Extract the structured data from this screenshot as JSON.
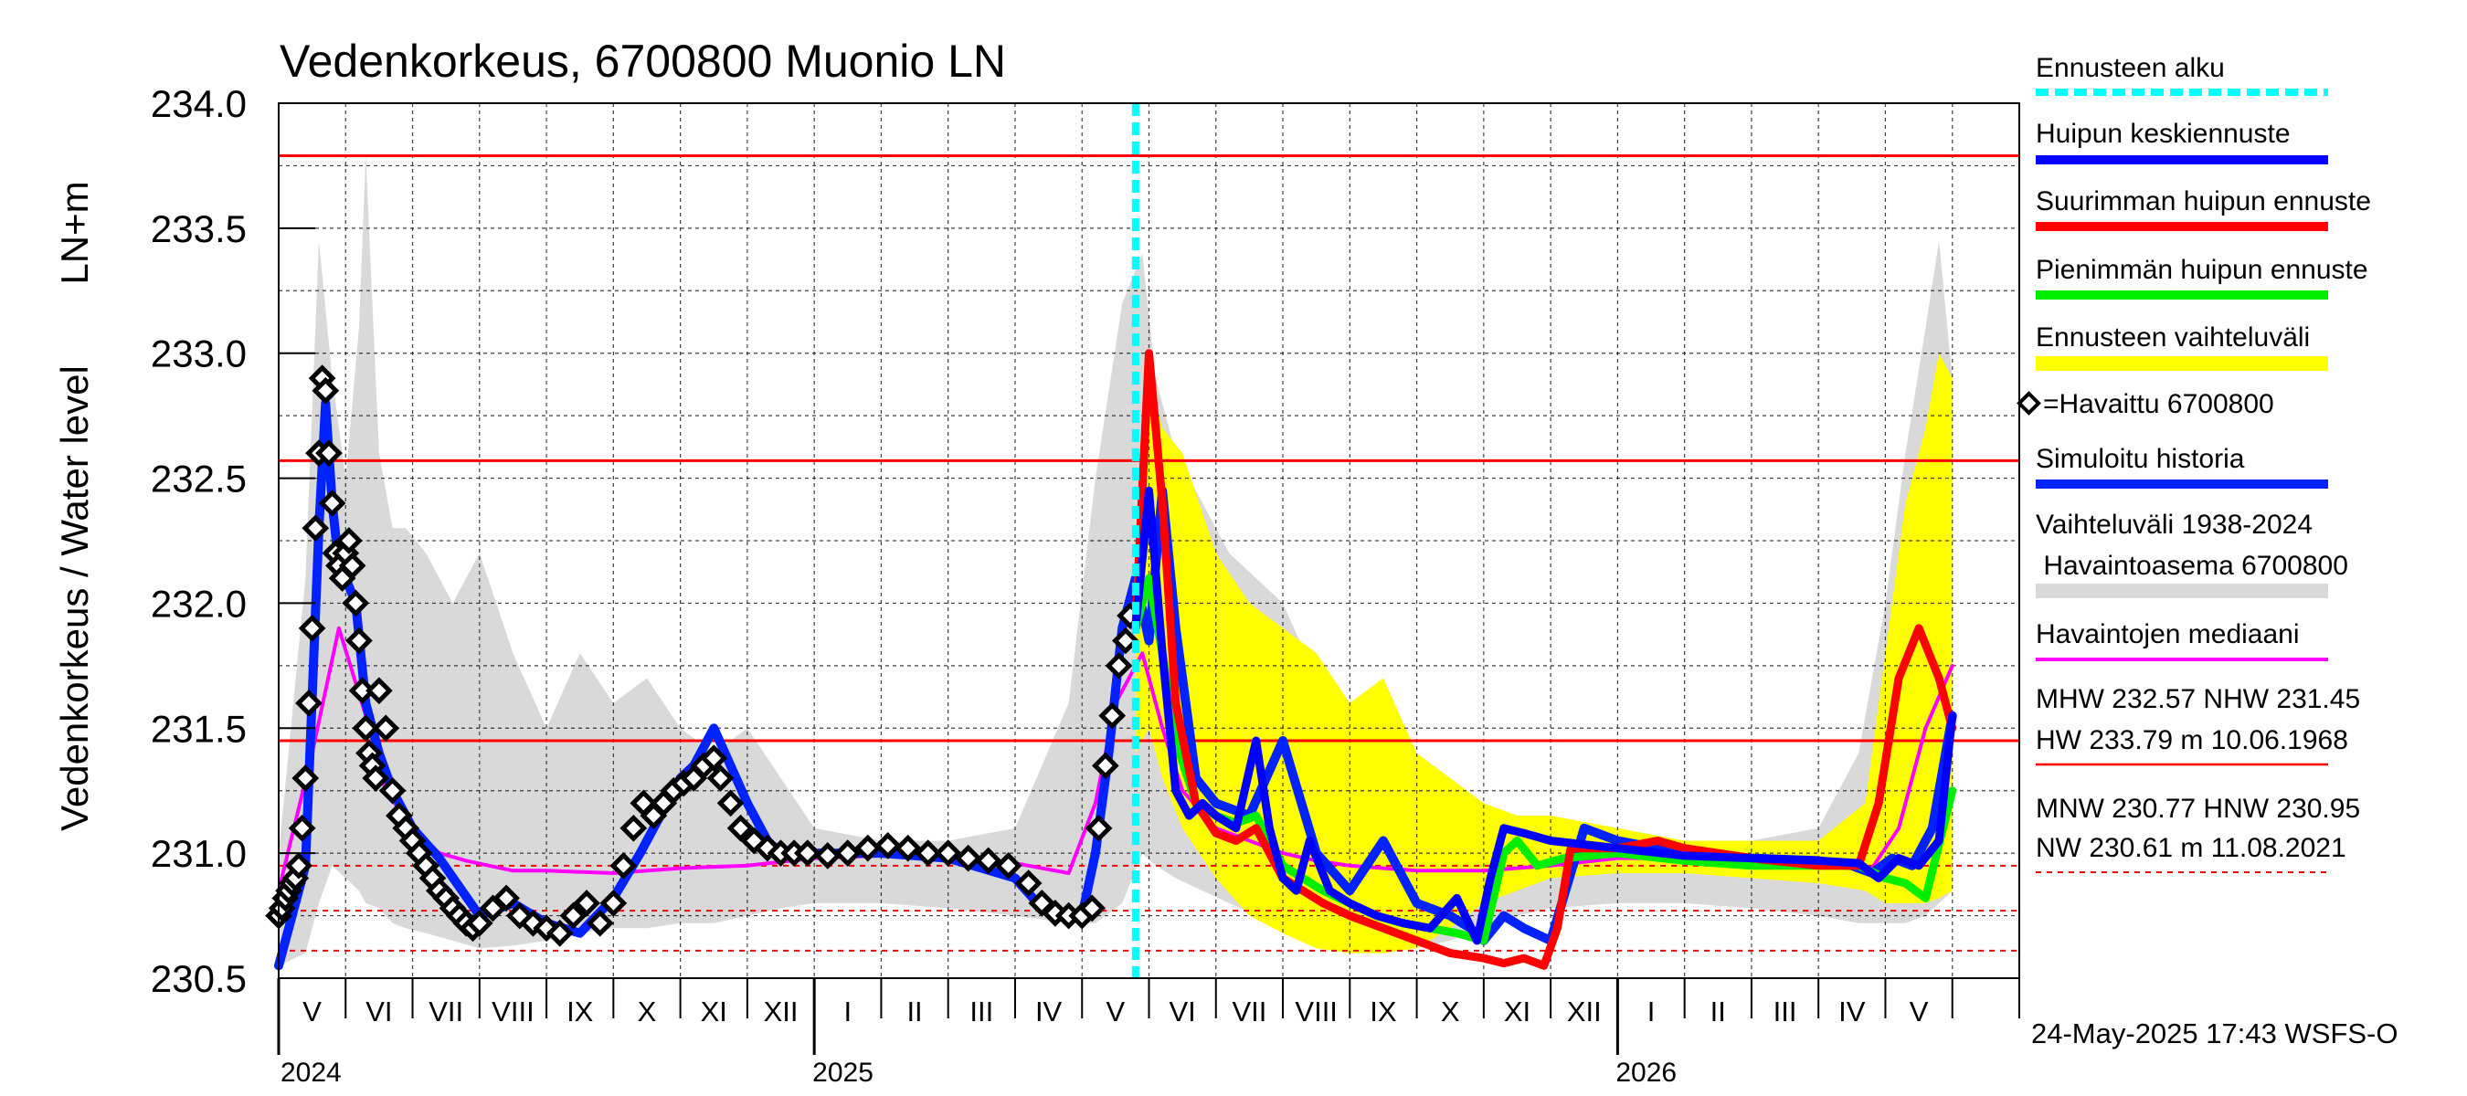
{
  "title": "Vedenkorkeus, 6700800 Muonio LN",
  "ylabel_outer": "Vedenkorkeus / Water level",
  "ylabel_inner": "LN+m",
  "footer": "24-May-2025 17:43 WSFS-O",
  "colors": {
    "reference": "#ff0000",
    "forecast_start": "#00ffff",
    "mean_forecast": "#0000ff",
    "max_forecast": "#ff0000",
    "min_forecast": "#00ee00",
    "forecast_range": "#ffff00",
    "observed": "#000000",
    "simulated": "#0022ff",
    "historical_range": "#d9d9d9",
    "median": "#ff00ff"
  },
  "legend": [
    {
      "id": "forecast-start",
      "label": "Ennusteen alku"
    },
    {
      "id": "mean-forecast",
      "label": "Huipun keskiennuste"
    },
    {
      "id": "max-forecast",
      "label": "Suurimman huipun ennuste"
    },
    {
      "id": "min-forecast",
      "label": "Pienimmän huipun ennuste"
    },
    {
      "id": "forecast-range",
      "label": "Ennusteen vaihteluväli"
    },
    {
      "id": "observed",
      "label": "=Havaittu 6700800"
    },
    {
      "id": "simulated",
      "label": "Simuloitu historia"
    },
    {
      "id": "hist-range",
      "label": "Vaihteluväli 1938-2024",
      "label2": " Havaintoasema 6700800"
    },
    {
      "id": "median",
      "label": "Havaintojen mediaani"
    },
    {
      "id": "high-stats",
      "label": "MHW 232.57 NHW 231.45",
      "label2": "HW 233.79 m 10.06.1968"
    },
    {
      "id": "low-stats",
      "label": "MNW 230.77 HNW 230.95",
      "label2": "NW 230.61 m 11.08.2021"
    }
  ],
  "chart_data": {
    "type": "line",
    "title": "Vedenkorkeus, 6700800 Muonio LN",
    "xlabel": "",
    "ylabel": "Vedenkorkeus / Water level  LN+m",
    "ylim": [
      230.5,
      234.0
    ],
    "xlim_months": [
      0,
      26
    ],
    "yticks": [
      "230.5",
      "231.0",
      "231.5",
      "232.0",
      "232.5",
      "233.0",
      "233.5",
      "234.0"
    ],
    "month_labels": [
      "V",
      "VI",
      "VII",
      "VIII",
      "IX",
      "X",
      "XI",
      "XII",
      "I",
      "II",
      "III",
      "IV",
      "V",
      "VI",
      "VII",
      "VIII",
      "IX",
      "X",
      "XI",
      "XII",
      "I",
      "II",
      "III",
      "IV",
      "V"
    ],
    "year_labels": [
      {
        "label": "2024",
        "at": 0
      },
      {
        "label": "2025",
        "at": 8
      },
      {
        "label": "2026",
        "at": 20
      }
    ],
    "reference_lines": [
      {
        "name": "HW",
        "value": 233.79,
        "style": "solid"
      },
      {
        "name": "MHW",
        "value": 232.57,
        "style": "solid"
      },
      {
        "name": "NHW",
        "value": 231.45,
        "style": "solid"
      },
      {
        "name": "HNW",
        "value": 230.95,
        "style": "dashed"
      },
      {
        "name": "MNW",
        "value": 230.77,
        "style": "dashed"
      },
      {
        "name": "NW",
        "value": 230.61,
        "style": "dashed"
      }
    ],
    "forecast_start": 12.8,
    "historical_range": {
      "x": [
        0.0,
        0.4,
        0.6,
        0.8,
        1.0,
        1.2,
        1.3,
        1.5,
        1.7,
        1.9,
        2.2,
        2.6,
        3.0,
        3.5,
        4.0,
        4.5,
        5.0,
        5.5,
        6.0,
        6.5,
        7.0,
        7.5,
        8.0,
        9.0,
        10.0,
        11.0,
        11.8,
        12.2,
        12.6,
        12.9,
        13.1,
        13.4,
        13.8,
        14.2,
        14.6,
        15.0,
        15.5,
        16.0,
        16.5,
        17.0,
        17.5,
        18.0,
        18.5,
        19.0,
        20.0,
        21.0,
        22.0,
        23.0,
        23.6,
        24.0,
        24.3,
        24.6,
        24.8,
        25.0
      ],
      "upper": [
        231.0,
        232.1,
        233.45,
        232.9,
        232.5,
        233.1,
        233.79,
        232.6,
        232.3,
        232.3,
        232.2,
        232.0,
        232.2,
        231.8,
        231.5,
        231.8,
        231.6,
        231.7,
        231.5,
        231.4,
        231.5,
        231.3,
        231.1,
        231.05,
        231.05,
        231.1,
        231.6,
        232.5,
        233.2,
        233.4,
        232.9,
        232.6,
        232.4,
        232.2,
        232.1,
        232.0,
        231.7,
        231.6,
        231.5,
        231.4,
        231.3,
        231.2,
        231.15,
        231.1,
        231.1,
        231.05,
        231.05,
        231.1,
        231.4,
        232.0,
        232.6,
        233.1,
        233.45,
        232.9
      ],
      "lower": [
        230.55,
        230.6,
        230.8,
        230.95,
        230.9,
        230.85,
        230.8,
        230.78,
        230.72,
        230.7,
        230.68,
        230.65,
        230.62,
        230.63,
        230.65,
        230.68,
        230.7,
        230.7,
        230.72,
        230.72,
        230.75,
        230.78,
        230.8,
        230.8,
        230.78,
        230.75,
        230.72,
        230.72,
        230.8,
        231.0,
        230.95,
        230.9,
        230.85,
        230.8,
        230.75,
        230.7,
        230.65,
        230.63,
        230.62,
        230.62,
        230.65,
        230.7,
        230.75,
        230.78,
        230.8,
        230.8,
        230.78,
        230.75,
        230.72,
        230.72,
        230.72,
        230.75,
        230.8,
        230.85
      ]
    },
    "forecast_range": {
      "x": [
        12.8,
        13.0,
        13.2,
        13.5,
        14.0,
        14.5,
        15.0,
        15.5,
        16.0,
        16.5,
        17.0,
        17.5,
        18.0,
        18.5,
        19.0,
        20.0,
        21.0,
        22.0,
        23.0,
        23.7,
        24.0,
        24.3,
        24.6,
        24.8,
        25.0
      ],
      "upper": [
        231.9,
        232.9,
        232.7,
        232.6,
        232.2,
        232.0,
        231.9,
        231.8,
        231.6,
        231.7,
        231.4,
        231.3,
        231.2,
        231.15,
        231.15,
        231.1,
        231.05,
        231.05,
        231.05,
        231.2,
        231.8,
        232.4,
        232.7,
        233.0,
        232.9
      ],
      "lower": [
        231.4,
        231.5,
        231.3,
        231.1,
        230.9,
        230.75,
        230.68,
        230.62,
        230.6,
        230.6,
        230.62,
        230.7,
        230.8,
        230.85,
        230.9,
        230.92,
        230.92,
        230.9,
        230.88,
        230.85,
        230.8,
        230.8,
        230.8,
        230.82,
        230.85
      ]
    },
    "series": [
      {
        "name": "Havaintojen mediaani",
        "key": "median",
        "x": [
          0.0,
          0.5,
          0.9,
          1.3,
          1.6,
          2.0,
          2.4,
          2.8,
          3.5,
          4.0,
          5.0,
          6.0,
          7.0,
          8.0,
          9.0,
          10.0,
          11.0,
          11.8,
          12.2,
          12.5,
          12.9,
          13.2,
          13.5,
          14.0,
          14.5,
          15.0,
          15.5,
          16.0,
          17.0,
          18.0,
          19.0,
          20.0,
          21.0,
          22.0,
          23.0,
          23.8,
          24.2,
          24.6,
          25.0
        ],
        "y": [
          230.85,
          231.4,
          231.9,
          231.55,
          231.25,
          231.1,
          231.0,
          230.97,
          230.93,
          230.93,
          230.92,
          230.94,
          230.95,
          230.98,
          230.99,
          230.98,
          230.96,
          230.92,
          231.2,
          231.6,
          231.8,
          231.5,
          231.25,
          231.1,
          231.05,
          231.0,
          230.97,
          230.95,
          230.93,
          230.93,
          230.95,
          230.98,
          230.98,
          230.97,
          230.96,
          230.94,
          231.1,
          231.5,
          231.75
        ]
      },
      {
        "name": "Simuloitu historia",
        "key": "simulated",
        "x": [
          0.0,
          0.2,
          0.4,
          0.6,
          0.7,
          0.8,
          0.9,
          1.0,
          1.15,
          1.3,
          1.5,
          1.7,
          2.0,
          2.4,
          3.0,
          3.5,
          4.0,
          4.5,
          5.0,
          5.4,
          5.8,
          6.0,
          6.2,
          6.5,
          7.0,
          7.3,
          7.5,
          8.0,
          9.0,
          10.0,
          11.0,
          11.4,
          11.7,
          12.0,
          12.2,
          12.4,
          12.6,
          12.8,
          13.0,
          13.2,
          13.4,
          13.7,
          14.0,
          14.5,
          15.0,
          15.5,
          16.0,
          16.5,
          17.0,
          17.5,
          17.8,
          18.0,
          18.3,
          18.6,
          19.0,
          19.5,
          20.0,
          21.0,
          22.0,
          23.0,
          23.5,
          23.8,
          24.1,
          24.4,
          24.7,
          25.0
        ],
        "y": [
          230.55,
          230.75,
          230.95,
          232.3,
          232.8,
          232.4,
          232.15,
          232.1,
          232.0,
          231.6,
          231.4,
          231.25,
          231.1,
          230.98,
          230.75,
          230.8,
          230.72,
          230.68,
          230.82,
          231.0,
          231.2,
          231.3,
          231.35,
          231.5,
          231.2,
          231.05,
          231.0,
          231.0,
          231.0,
          230.98,
          230.9,
          230.78,
          230.75,
          230.75,
          231.0,
          231.4,
          231.9,
          232.1,
          231.85,
          232.45,
          231.9,
          231.3,
          231.2,
          231.15,
          231.45,
          231.0,
          230.85,
          231.05,
          230.8,
          230.75,
          230.7,
          230.65,
          230.75,
          230.7,
          230.65,
          231.1,
          231.05,
          231.0,
          230.98,
          230.97,
          230.95,
          230.92,
          230.98,
          230.95,
          231.1,
          231.55
        ]
      },
      {
        "name": "Pienimmän huipun ennuste",
        "key": "min_forecast",
        "x": [
          12.8,
          13.0,
          13.2,
          13.4,
          13.7,
          14.0,
          14.3,
          14.6,
          15.0,
          15.3,
          15.6,
          16.0,
          16.4,
          16.8,
          17.2,
          17.6,
          18.0,
          18.3,
          18.5,
          18.8,
          19.2,
          20.0,
          21.0,
          22.0,
          23.0,
          23.6,
          24.0,
          24.3,
          24.6,
          25.0
        ],
        "y": [
          231.9,
          232.1,
          231.8,
          231.45,
          231.2,
          231.15,
          231.12,
          231.15,
          230.95,
          230.9,
          230.85,
          230.8,
          230.75,
          230.72,
          230.7,
          230.68,
          230.65,
          231.0,
          231.05,
          230.95,
          230.98,
          231.0,
          230.97,
          230.95,
          230.95,
          230.95,
          230.9,
          230.88,
          230.82,
          231.25
        ]
      },
      {
        "name": "Suurimman huipun ennuste",
        "key": "max_forecast",
        "x": [
          12.8,
          13.0,
          13.2,
          13.4,
          13.7,
          14.0,
          14.3,
          14.6,
          15.0,
          15.3,
          15.6,
          16.0,
          16.5,
          17.0,
          17.5,
          18.0,
          18.3,
          18.6,
          18.9,
          19.1,
          19.3,
          20.0,
          20.6,
          21.0,
          22.0,
          23.0,
          23.6,
          23.9,
          24.2,
          24.5,
          24.8,
          25.0
        ],
        "y": [
          231.9,
          233.0,
          232.4,
          231.6,
          231.2,
          231.08,
          231.05,
          231.1,
          230.9,
          230.85,
          230.8,
          230.75,
          230.7,
          230.65,
          230.6,
          230.58,
          230.56,
          230.58,
          230.55,
          230.7,
          231.02,
          231.02,
          231.05,
          231.02,
          230.98,
          230.95,
          230.95,
          231.2,
          231.7,
          231.9,
          231.7,
          231.5
        ]
      },
      {
        "name": "Huipun keskiennuste",
        "key": "mean_forecast",
        "x": [
          12.8,
          13.0,
          13.2,
          13.4,
          13.6,
          13.8,
          14.0,
          14.3,
          14.6,
          14.8,
          15.0,
          15.2,
          15.4,
          15.7,
          16.0,
          16.4,
          16.8,
          17.2,
          17.6,
          17.9,
          18.1,
          18.3,
          18.6,
          19.0,
          20.0,
          21.0,
          22.0,
          23.0,
          23.6,
          23.9,
          24.2,
          24.5,
          24.8,
          25.0
        ],
        "y": [
          231.9,
          232.45,
          231.8,
          231.25,
          231.15,
          231.2,
          231.15,
          231.1,
          231.45,
          231.1,
          230.9,
          230.85,
          231.05,
          230.85,
          230.8,
          230.75,
          230.72,
          230.7,
          230.82,
          230.65,
          230.9,
          231.1,
          231.08,
          231.05,
          231.02,
          230.99,
          230.98,
          230.97,
          230.96,
          230.9,
          230.98,
          230.95,
          231.05,
          231.55
        ]
      }
    ],
    "observed": {
      "name": "Havaittu 6700800",
      "x": [
        0.0,
        0.05,
        0.1,
        0.15,
        0.2,
        0.25,
        0.3,
        0.35,
        0.4,
        0.45,
        0.5,
        0.55,
        0.6,
        0.65,
        0.7,
        0.75,
        0.8,
        0.85,
        0.9,
        0.95,
        1.0,
        1.05,
        1.1,
        1.15,
        1.2,
        1.25,
        1.3,
        1.35,
        1.4,
        1.45,
        1.5,
        1.6,
        1.7,
        1.8,
        1.9,
        2.0,
        2.1,
        2.2,
        2.3,
        2.4,
        2.5,
        2.6,
        2.7,
        2.8,
        2.9,
        3.0,
        3.2,
        3.4,
        3.6,
        3.8,
        4.0,
        4.2,
        4.4,
        4.6,
        4.8,
        5.0,
        5.15,
        5.3,
        5.45,
        5.6,
        5.75,
        5.9,
        6.05,
        6.2,
        6.35,
        6.5,
        6.6,
        6.75,
        6.9,
        7.1,
        7.3,
        7.5,
        7.7,
        7.9,
        8.2,
        8.5,
        8.8,
        9.1,
        9.4,
        9.7,
        10.0,
        10.3,
        10.6,
        10.9,
        11.2,
        11.4,
        11.6,
        11.8,
        12.0,
        12.15,
        12.25,
        12.35,
        12.45,
        12.55,
        12.65,
        12.72
      ],
      "y": [
        230.75,
        230.78,
        230.82,
        230.85,
        230.88,
        230.9,
        230.95,
        231.1,
        231.3,
        231.6,
        231.9,
        232.3,
        232.6,
        232.9,
        232.85,
        232.6,
        232.4,
        232.2,
        232.15,
        232.1,
        232.2,
        232.25,
        232.15,
        232.0,
        231.85,
        231.65,
        231.5,
        231.4,
        231.35,
        231.3,
        231.65,
        231.5,
        231.25,
        231.15,
        231.1,
        231.05,
        231.0,
        230.95,
        230.9,
        230.85,
        230.82,
        230.78,
        230.75,
        230.72,
        230.7,
        230.72,
        230.78,
        230.82,
        230.75,
        230.72,
        230.7,
        230.68,
        230.75,
        230.8,
        230.72,
        230.8,
        230.95,
        231.1,
        231.2,
        231.15,
        231.2,
        231.25,
        231.28,
        231.3,
        231.35,
        231.38,
        231.3,
        231.2,
        231.1,
        231.05,
        231.02,
        231.0,
        231.0,
        231.0,
        230.99,
        231.0,
        231.02,
        231.03,
        231.02,
        231.0,
        231.0,
        230.98,
        230.97,
        230.95,
        230.88,
        230.8,
        230.76,
        230.75,
        230.75,
        230.78,
        231.1,
        231.35,
        231.55,
        231.75,
        231.85,
        231.95
      ]
    }
  }
}
